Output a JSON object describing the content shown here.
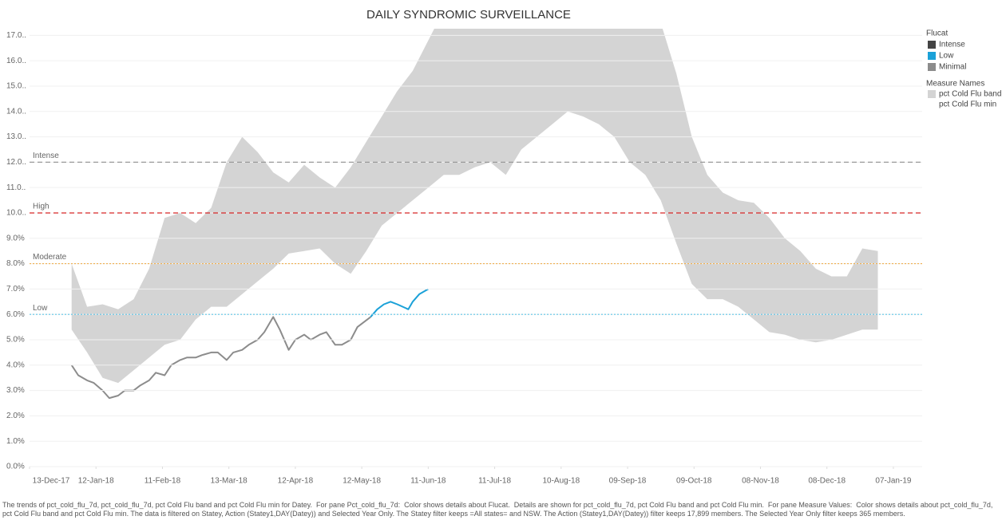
{
  "chart_data": {
    "type": "line",
    "title": "DAILY SYNDROMIC SURVEILLANCE",
    "xlim": [
      "2017-12-13",
      "2019-01-20"
    ],
    "xticks": [
      {
        "value": "2017-12-13",
        "label": "13-Dec-17"
      },
      {
        "value": "2018-01-12",
        "label": "12-Jan-18"
      },
      {
        "value": "2018-02-11",
        "label": "11-Feb-18"
      },
      {
        "value": "2018-03-13",
        "label": "13-Mar-18"
      },
      {
        "value": "2018-04-12",
        "label": "12-Apr-18"
      },
      {
        "value": "2018-05-12",
        "label": "12-May-18"
      },
      {
        "value": "2018-06-11",
        "label": "11-Jun-18"
      },
      {
        "value": "2018-07-11",
        "label": "11-Jul-18"
      },
      {
        "value": "2018-08-10",
        "label": "10-Aug-18"
      },
      {
        "value": "2018-09-09",
        "label": "09-Sep-18"
      },
      {
        "value": "2018-10-09",
        "label": "09-Oct-18"
      },
      {
        "value": "2018-11-08",
        "label": "08-Nov-18"
      },
      {
        "value": "2018-12-08",
        "label": "08-Dec-18"
      },
      {
        "value": "2019-01-07",
        "label": "07-Jan-19"
      }
    ],
    "ylim": [
      0,
      17.2
    ],
    "yticks": [
      {
        "value": 0,
        "label": "0.0%"
      },
      {
        "value": 1,
        "label": "1.0%"
      },
      {
        "value": 2,
        "label": "2.0%"
      },
      {
        "value": 3,
        "label": "3.0%"
      },
      {
        "value": 4,
        "label": "4.0%"
      },
      {
        "value": 5,
        "label": "5.0%"
      },
      {
        "value": 6,
        "label": "6.0%"
      },
      {
        "value": 7,
        "label": "7.0%"
      },
      {
        "value": 8,
        "label": "8.0%"
      },
      {
        "value": 9,
        "label": "9.0%"
      },
      {
        "value": 10,
        "label": "10.0.."
      },
      {
        "value": 11,
        "label": "11.0.."
      },
      {
        "value": 12,
        "label": "12.0.."
      },
      {
        "value": 13,
        "label": "13.0.."
      },
      {
        "value": 14,
        "label": "14.0.."
      },
      {
        "value": 15,
        "label": "15.0.."
      },
      {
        "value": 16,
        "label": "16.0.."
      },
      {
        "value": 17,
        "label": "17.0.."
      }
    ],
    "grid": true,
    "reference_lines": [
      {
        "label": "Intense",
        "value": 12,
        "color": "#9a9a9a",
        "dash": "6,4"
      },
      {
        "label": "High",
        "value": 10,
        "color": "#d62728",
        "dash": "6,4"
      },
      {
        "label": "Moderate",
        "value": 8,
        "color": "#f0b050",
        "dash": "2,2"
      },
      {
        "label": "Low",
        "value": 6,
        "color": "#5ec4e6",
        "dash": "2,2"
      }
    ],
    "band": {
      "color": "#d4d4d4",
      "x": [
        "2018-01-01",
        "2018-01-08",
        "2018-01-15",
        "2018-01-22",
        "2018-01-29",
        "2018-02-05",
        "2018-02-12",
        "2018-02-19",
        "2018-02-26",
        "2018-03-05",
        "2018-03-12",
        "2018-03-19",
        "2018-03-26",
        "2018-04-02",
        "2018-04-09",
        "2018-04-16",
        "2018-04-23",
        "2018-04-30",
        "2018-05-07",
        "2018-05-14",
        "2018-05-21",
        "2018-05-28",
        "2018-06-04",
        "2018-06-11",
        "2018-06-18",
        "2018-06-25",
        "2018-07-02",
        "2018-07-09",
        "2018-07-16",
        "2018-07-23",
        "2018-07-30",
        "2018-08-06",
        "2018-08-13",
        "2018-08-20",
        "2018-08-27",
        "2018-09-03",
        "2018-09-10",
        "2018-09-17",
        "2018-09-24",
        "2018-10-01",
        "2018-10-08",
        "2018-10-15",
        "2018-10-22",
        "2018-10-29",
        "2018-11-05",
        "2018-11-12",
        "2018-11-19",
        "2018-11-26",
        "2018-12-03",
        "2018-12-10",
        "2018-12-17",
        "2018-12-24",
        "2018-12-31"
      ],
      "upper": [
        8.0,
        6.3,
        6.4,
        6.2,
        6.6,
        7.8,
        9.8,
        10.0,
        9.6,
        10.2,
        12.0,
        13.0,
        12.4,
        11.6,
        11.2,
        11.9,
        11.4,
        11.0,
        11.8,
        12.8,
        13.8,
        14.8,
        15.6,
        16.8,
        18.0,
        18.5,
        19.0,
        19.0,
        19.0,
        19.0,
        19.0,
        19.0,
        19.0,
        19.0,
        19.0,
        19.0,
        18.5,
        18.0,
        17.5,
        15.5,
        13.0,
        11.5,
        10.8,
        10.5,
        10.4,
        9.8,
        9.0,
        8.5,
        7.8,
        7.5,
        7.5,
        8.6,
        8.5
      ],
      "lower": [
        5.4,
        4.5,
        3.5,
        3.3,
        3.8,
        4.3,
        4.8,
        5.0,
        5.8,
        6.3,
        6.3,
        6.8,
        7.3,
        7.8,
        8.4,
        8.5,
        8.6,
        8.0,
        7.6,
        8.5,
        9.5,
        10.0,
        10.5,
        11.0,
        11.5,
        11.5,
        11.8,
        12.0,
        11.5,
        12.5,
        13.0,
        13.5,
        14.0,
        13.8,
        13.5,
        13.0,
        12.0,
        11.5,
        10.5,
        8.8,
        7.2,
        6.6,
        6.6,
        6.3,
        5.8,
        5.3,
        5.2,
        5.0,
        4.9,
        5.0,
        5.2,
        5.4,
        5.4
      ]
    },
    "legend_title": "Flucat",
    "series": [
      {
        "name": "Intense",
        "color": "#444444",
        "x": [],
        "values": []
      },
      {
        "name": "Low",
        "color": "#1ba1d8",
        "x": [
          "2018-05-16",
          "2018-05-19",
          "2018-05-22",
          "2018-05-25",
          "2018-05-28",
          "2018-06-02",
          "2018-06-04",
          "2018-06-07",
          "2018-06-11"
        ],
        "values": [
          5.9,
          6.2,
          6.4,
          6.5,
          6.4,
          6.2,
          6.5,
          6.8,
          7.0
        ]
      },
      {
        "name": "Minimal",
        "color": "#8c8c8c",
        "x": [
          "2018-01-01",
          "2018-01-04",
          "2018-01-08",
          "2018-01-11",
          "2018-01-15",
          "2018-01-18",
          "2018-01-22",
          "2018-01-25",
          "2018-01-29",
          "2018-02-01",
          "2018-02-05",
          "2018-02-08",
          "2018-02-12",
          "2018-02-15",
          "2018-02-19",
          "2018-02-22",
          "2018-02-26",
          "2018-03-01",
          "2018-03-05",
          "2018-03-08",
          "2018-03-12",
          "2018-03-15",
          "2018-03-19",
          "2018-03-22",
          "2018-03-26",
          "2018-03-29",
          "2018-04-02",
          "2018-04-05",
          "2018-04-09",
          "2018-04-12",
          "2018-04-16",
          "2018-04-19",
          "2018-04-23",
          "2018-04-26",
          "2018-04-30",
          "2018-05-03",
          "2018-05-07",
          "2018-05-10",
          "2018-05-16"
        ],
        "values": [
          4.0,
          3.6,
          3.4,
          3.3,
          3.0,
          2.7,
          2.8,
          3.0,
          3.0,
          3.2,
          3.4,
          3.7,
          3.6,
          4.0,
          4.2,
          4.3,
          4.3,
          4.4,
          4.5,
          4.5,
          4.2,
          4.5,
          4.6,
          4.8,
          5.0,
          5.3,
          5.9,
          5.4,
          4.6,
          5.0,
          5.2,
          5.0,
          5.2,
          5.3,
          4.8,
          4.8,
          5.0,
          5.5,
          5.9
        ]
      }
    ],
    "measure_legend_title": "Measure Names",
    "measures": [
      {
        "name": "pct Cold Flu band",
        "color": "#d4d4d4"
      },
      {
        "name": "pct Cold Flu min"
      }
    ],
    "caption": "The trends of pct_cold_flu_7d, pct_cold_flu_7d, pct Cold Flu band and pct Cold Flu min for Datey.  For pane Pct_cold_flu_7d:  Color shows details about Flucat.  Details are shown for pct_cold_flu_7d, pct Cold Flu band and pct Cold Flu min.  For pane Measure Values:  Color shows details about pct_cold_flu_7d, pct Cold Flu band and pct Cold Flu min. The data is filtered on Statey, Action (Statey1,DAY(Datey)) and Selected Year Only. The Statey filter keeps =All states= and NSW. The Action (Statey1,DAY(Datey)) filter keeps 17,899 members. The Selected Year Only filter keeps 365 members."
  }
}
